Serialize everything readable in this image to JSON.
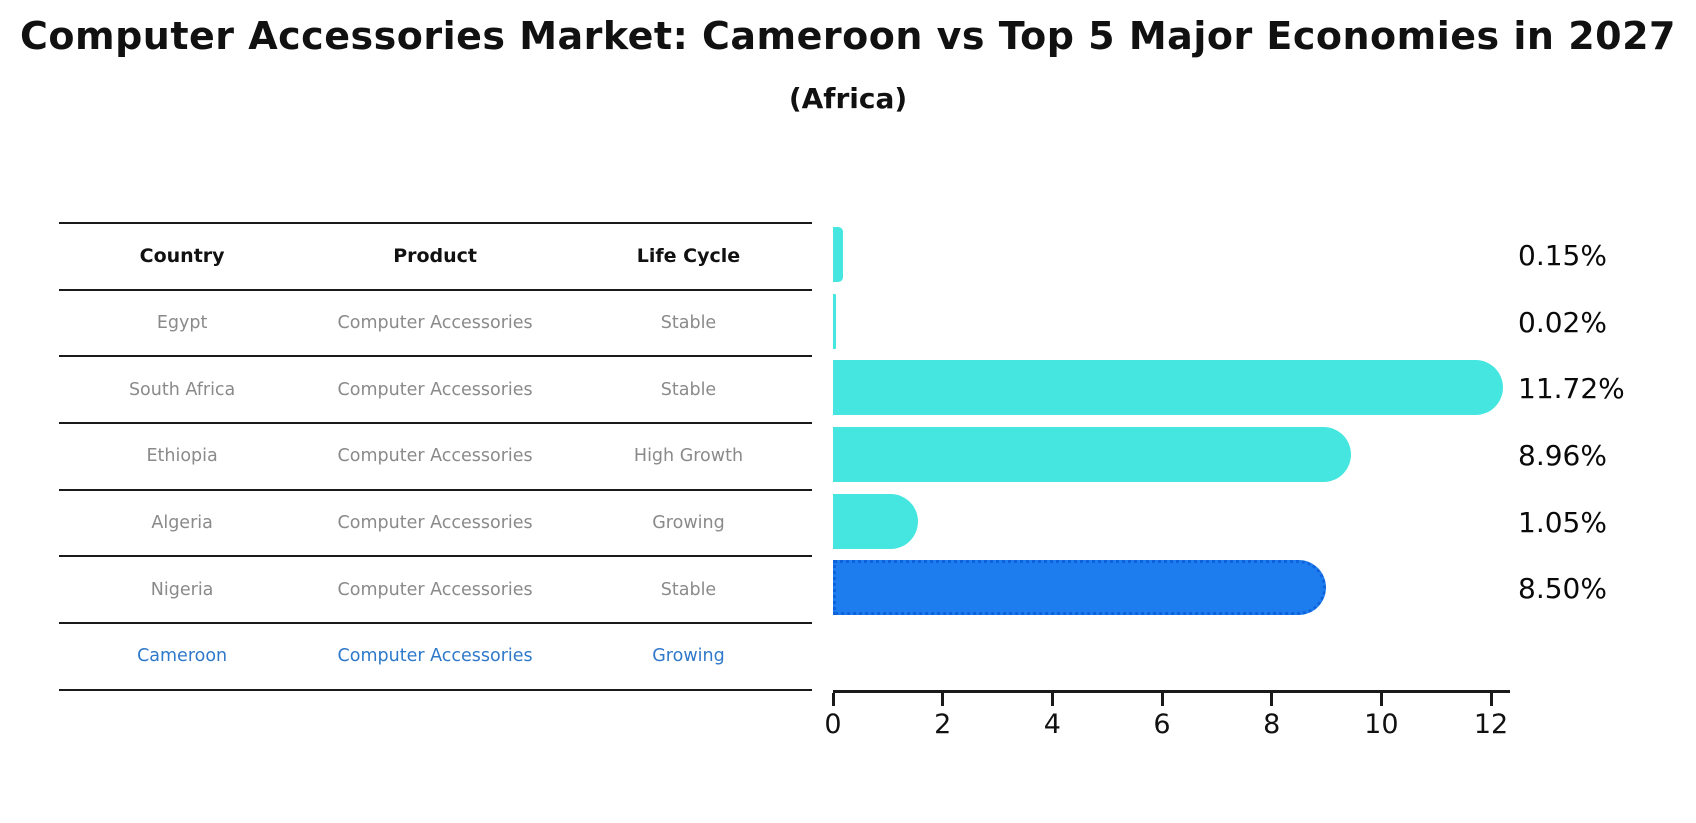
{
  "title": "Computer Accessories Market: Cameroon vs Top 5 Major Economies in 2027",
  "subtitle": "(Africa)",
  "table": {
    "headers": [
      "Country",
      "Product",
      "Life Cycle"
    ],
    "rows": [
      {
        "country": "Egypt",
        "product": "Computer Accessories",
        "life_cycle": "Stable",
        "value": 0.15,
        "value_label": "0.15%",
        "highlight": false
      },
      {
        "country": "South Africa",
        "product": "Computer Accessories",
        "life_cycle": "Stable",
        "value": 0.02,
        "value_label": "0.02%",
        "highlight": false
      },
      {
        "country": "Ethiopia",
        "product": "Computer Accessories",
        "life_cycle": "High Growth",
        "value": 11.72,
        "value_label": "11.72%",
        "highlight": false
      },
      {
        "country": "Algeria",
        "product": "Computer Accessories",
        "life_cycle": "Growing",
        "value": 8.96,
        "value_label": "8.96%",
        "highlight": false
      },
      {
        "country": "Nigeria",
        "product": "Computer Accessories",
        "life_cycle": "Stable",
        "value": 1.05,
        "value_label": "1.05%",
        "highlight": false
      },
      {
        "country": "Cameroon",
        "product": "Computer Accessories",
        "life_cycle": "Growing",
        "value": 8.5,
        "value_label": "8.50%",
        "highlight": true
      }
    ]
  },
  "axis": {
    "ticks": [
      0,
      2,
      4,
      6,
      8,
      10,
      12
    ],
    "max": 12
  },
  "colors": {
    "bar": "#45E6E0",
    "highlight_bar": "#1D7CEE",
    "highlight_border": "#0E63DC",
    "highlight_text": "#2E79C9",
    "row_text": "#8A8A8A",
    "header_text": "#111111",
    "line": "#1A1A1A",
    "label_text": "#0A0A0A"
  },
  "chart_data": {
    "type": "bar",
    "orientation": "horizontal",
    "title": "Computer Accessories Market: Cameroon vs Top 5 Major Economies in 2027",
    "subtitle": "(Africa)",
    "categories": [
      "Egypt",
      "South Africa",
      "Ethiopia",
      "Algeria",
      "Nigeria",
      "Cameroon"
    ],
    "values": [
      0.15,
      0.02,
      11.72,
      8.96,
      1.05,
      8.5
    ],
    "value_labels": [
      "0.15%",
      "0.02%",
      "11.72%",
      "8.96%",
      "1.05%",
      "8.50%"
    ],
    "xlabel": "",
    "ylabel": "",
    "xlim": [
      0,
      12.4
    ],
    "x_ticks": [
      0,
      2,
      4,
      6,
      8,
      10,
      12
    ],
    "grid": false,
    "legend": "none",
    "highlight_category": "Cameroon",
    "table_columns": [
      "Country",
      "Product",
      "Life Cycle"
    ],
    "life_cycle_column": [
      "Stable",
      "Stable",
      "High Growth",
      "Growing",
      "Stable",
      "Growing"
    ]
  }
}
